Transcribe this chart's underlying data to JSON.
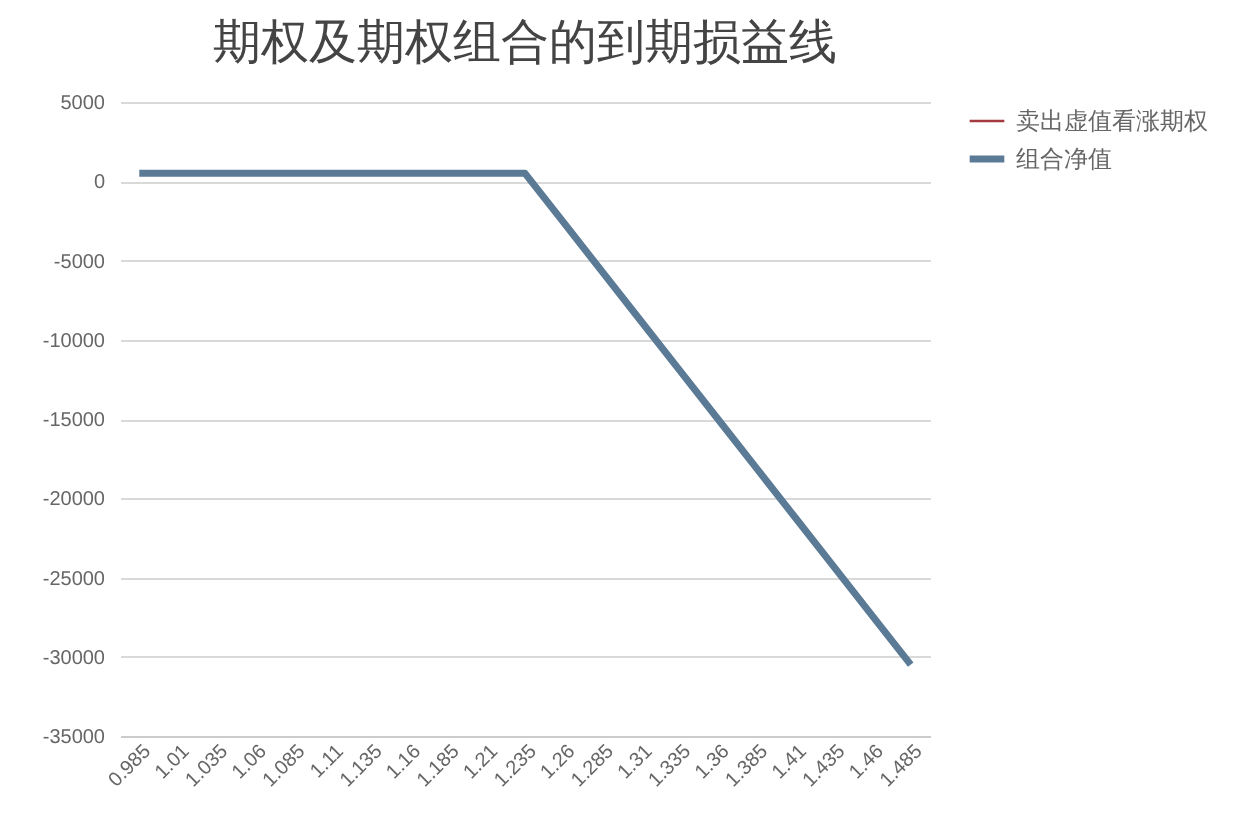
{
  "chart_data": {
    "type": "line",
    "title": "期权及期权组合的到期损益线",
    "categories": [
      "0.985",
      "1.01",
      "1.035",
      "1.06",
      "1.085",
      "1.11",
      "1.135",
      "1.16",
      "1.185",
      "1.21",
      "1.235",
      "1.26",
      "1.285",
      "1.31",
      "1.335",
      "1.36",
      "1.385",
      "1.41",
      "1.435",
      "1.46",
      "1.485"
    ],
    "series": [
      {
        "name": "卖出虚值看涨期权",
        "color": "#a33a3f",
        "values": [
          null,
          null,
          null,
          null,
          null,
          null,
          null,
          null,
          null,
          null,
          null,
          null,
          null,
          null,
          null,
          null,
          null,
          null,
          null,
          null,
          null
        ]
      },
      {
        "name": "组合净值",
        "color": "#5a7a96",
        "values": [
          500,
          500,
          500,
          500,
          500,
          500,
          500,
          500,
          500,
          500,
          500,
          -2600,
          -5700,
          -8800,
          -11900,
          -15000,
          -18100,
          -21200,
          -24300,
          -27400,
          -30500
        ]
      }
    ],
    "ylim": [
      -35000,
      5000
    ],
    "yticks": [
      -35000,
      -30000,
      -25000,
      -20000,
      -15000,
      -10000,
      -5000,
      0,
      5000
    ],
    "grid": "y",
    "legend": "right",
    "marker": "none",
    "line_style": "solid"
  }
}
